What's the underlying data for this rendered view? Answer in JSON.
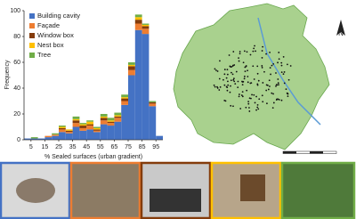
{
  "chart_data": {
    "type": "histogram",
    "x_label": "% Sealed surfaces (urban gradient)",
    "y_label": "Frequency",
    "bins": [
      0,
      5,
      10,
      15,
      20,
      25,
      30,
      35,
      40,
      45,
      50,
      55,
      60,
      65,
      70,
      75,
      80,
      85,
      90,
      95,
      100
    ],
    "xlim": [
      0,
      100
    ],
    "xticks": [
      5,
      15,
      25,
      35,
      45,
      55,
      65,
      75,
      85,
      95
    ],
    "ylim": [
      0,
      100
    ],
    "yticks": [
      0,
      20,
      40,
      60,
      80,
      100
    ],
    "stacked": true,
    "legend": "upper left",
    "series": [
      {
        "name": "Building cavity",
        "color": "#4472c4",
        "values": [
          1,
          1,
          1,
          2,
          3,
          6,
          5,
          10,
          7,
          8,
          6,
          12,
          11,
          14,
          27,
          50,
          85,
          82,
          26,
          3
        ]
      },
      {
        "name": "Façade",
        "color": "#ed7d31",
        "values": [
          0,
          0,
          0,
          1,
          1,
          2,
          1,
          3,
          2,
          3,
          1,
          3,
          2,
          3,
          3,
          4,
          5,
          4,
          2,
          0
        ]
      },
      {
        "name": "Window box",
        "color": "#843c0c",
        "values": [
          0,
          0,
          0,
          0,
          0,
          1,
          1,
          2,
          2,
          1,
          1,
          2,
          1,
          1,
          2,
          3,
          3,
          2,
          1,
          0
        ]
      },
      {
        "name": "Nest box",
        "color": "#ffc000",
        "values": [
          0,
          0,
          0,
          0,
          0,
          1,
          1,
          1,
          1,
          2,
          1,
          1,
          1,
          1,
          1,
          1,
          2,
          1,
          0,
          0
        ]
      },
      {
        "name": "Tree",
        "color": "#70ad47",
        "values": [
          0,
          1,
          0,
          0,
          1,
          1,
          0,
          2,
          1,
          1,
          1,
          2,
          2,
          2,
          2,
          2,
          2,
          1,
          1,
          0
        ]
      }
    ]
  },
  "map": {
    "north_label": "N"
  }
}
